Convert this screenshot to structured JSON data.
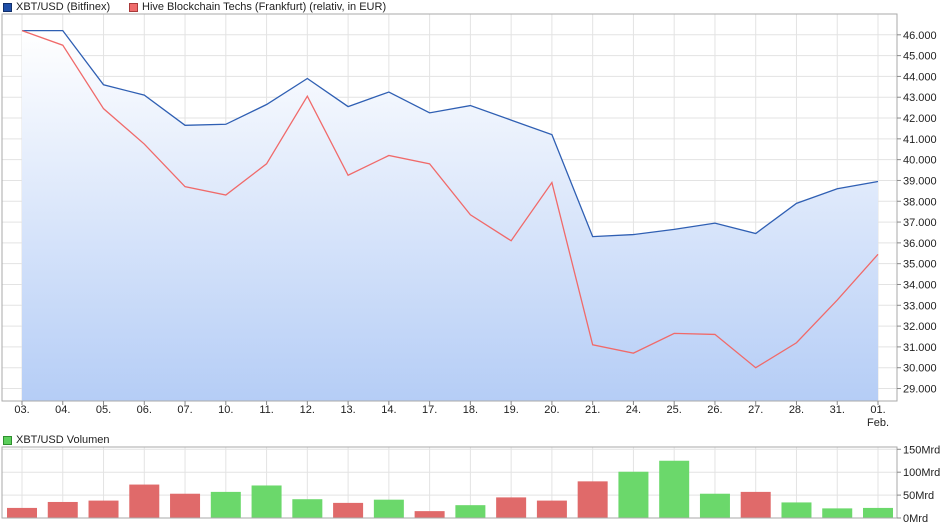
{
  "legend": {
    "series1": "XBT/USD (Bitfinex)",
    "series2": "Hive Blockchain Techs (Frankfurt) (relativ, in EUR)",
    "volume": "XBT/USD Volumen"
  },
  "colors": {
    "xbt_line": "#2f5fb3",
    "hive_line": "#f06a6a",
    "vol_up": "#6bd86b",
    "vol_down": "#e06a6a",
    "swatch_xbt": "#1f4fa8",
    "swatch_hive": "#ef6b6b",
    "swatch_vol": "#5ccf5c"
  },
  "chart_data": [
    {
      "type": "line",
      "x": [
        "03.",
        "04.",
        "05.",
        "06.",
        "07.",
        "10.",
        "11.",
        "12.",
        "13.",
        "14.",
        "17.",
        "18.",
        "19.",
        "20.",
        "21.",
        "24.",
        "25.",
        "26.",
        "27.",
        "28.",
        "31.",
        "01."
      ],
      "x_extra_label": "Feb.",
      "series": [
        {
          "name": "XBT/USD (Bitfinex)",
          "values": [
            46.2,
            46.2,
            43.6,
            43.1,
            41.65,
            41.7,
            42.65,
            43.9,
            42.55,
            43.25,
            42.25,
            42.6,
            41.9,
            41.2,
            36.3,
            36.4,
            36.65,
            36.95,
            36.45,
            37.9,
            38.6,
            38.95
          ]
        },
        {
          "name": "Hive Blockchain Techs (Frankfurt) (relativ, in EUR)",
          "values": [
            46.2,
            45.5,
            42.45,
            40.75,
            38.7,
            38.3,
            39.8,
            43.05,
            39.25,
            40.2,
            39.8,
            37.35,
            36.1,
            38.9,
            31.1,
            30.7,
            31.65,
            31.6,
            30.0,
            31.2,
            33.25,
            35.45
          ]
        }
      ],
      "yticks": [
        "29.000",
        "30.000",
        "31.000",
        "32.000",
        "33.000",
        "34.000",
        "35.000",
        "36.000",
        "37.000",
        "38.000",
        "39.000",
        "40.000",
        "41.000",
        "42.000",
        "43.000",
        "44.000",
        "45.000",
        "46.000"
      ],
      "ylim": [
        28.4,
        47.0
      ],
      "grid": true,
      "legend_position": "top-left"
    },
    {
      "type": "bar",
      "name": "XBT/USD Volumen",
      "values": [
        22,
        35,
        38,
        73,
        53,
        57,
        71,
        41,
        33,
        40,
        15,
        28,
        45,
        38,
        80,
        101,
        125,
        53,
        57,
        34,
        21,
        22
      ],
      "directions": [
        "down",
        "down",
        "down",
        "down",
        "down",
        "up",
        "up",
        "up",
        "down",
        "up",
        "down",
        "up",
        "down",
        "down",
        "down",
        "up",
        "up",
        "up",
        "down",
        "up",
        "up",
        "up"
      ],
      "yticks": [
        "0Mrd",
        "50Mrd",
        "100Mrd",
        "150Mrd"
      ],
      "ylim": [
        0,
        155
      ],
      "grid": true
    }
  ]
}
